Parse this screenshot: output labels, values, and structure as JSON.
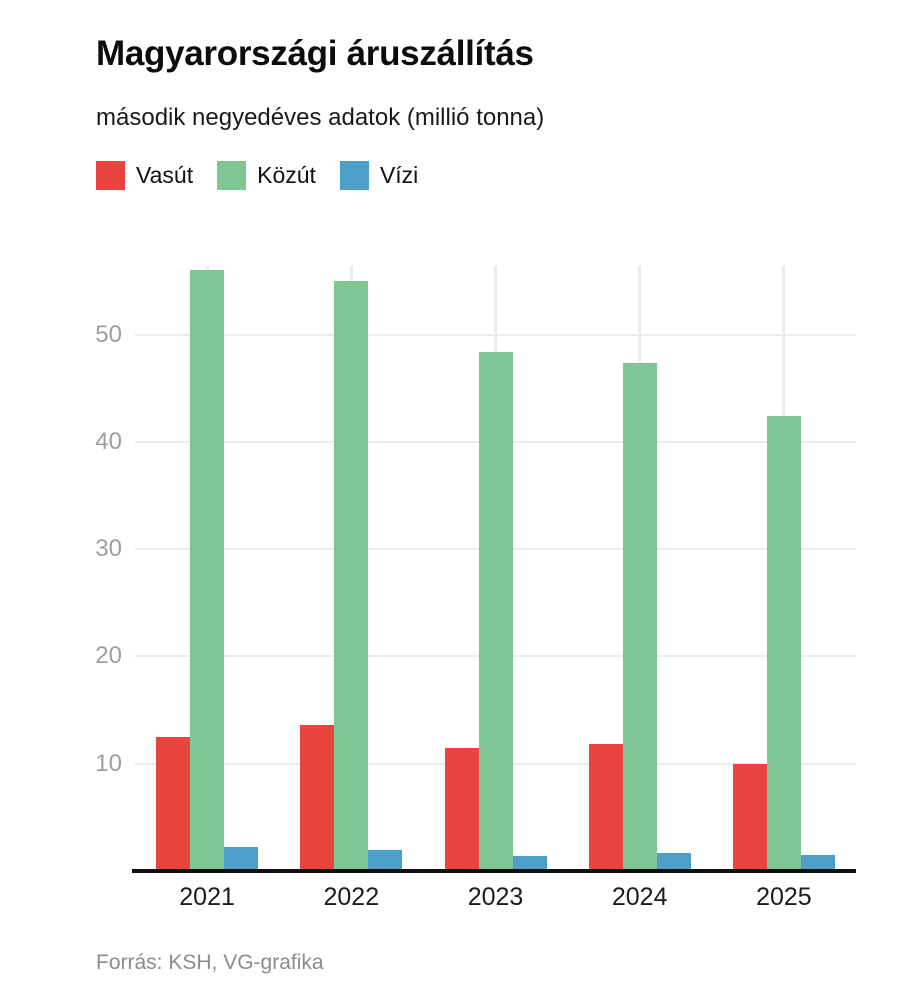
{
  "header": {
    "title": "Magyarországi áruszállítás",
    "subtitle": "második negyedéves adatok (millió tonna)"
  },
  "footer": {
    "source": "Forrás: KSH, VG-grafika"
  },
  "colors": {
    "vasut": "#e9453f",
    "kozut": "#7ec794",
    "vizi": "#4c9fc8",
    "grid": "#ececec",
    "axis": "#0f0f0f",
    "y_label": "#9e9e9e"
  },
  "chart_data": {
    "type": "bar",
    "title": "Magyarországi áruszállítás",
    "subtitle": "második negyedéves adatok (millió tonna)",
    "categories": [
      "2021",
      "2022",
      "2023",
      "2024",
      "2025"
    ],
    "series": [
      {
        "name": "Vasút",
        "color": "#e9453f",
        "values": [
          12.5,
          13.6,
          11.5,
          11.8,
          10.0
        ]
      },
      {
        "name": "Közút",
        "color": "#7ec794",
        "values": [
          56.0,
          55.0,
          48.4,
          47.4,
          42.4
        ]
      },
      {
        "name": "Vízi",
        "color": "#4c9fc8",
        "values": [
          2.2,
          2.0,
          1.4,
          1.7,
          1.5
        ]
      }
    ],
    "xlabel": "",
    "ylabel": "",
    "yticks": [
      10,
      20,
      30,
      40,
      50
    ],
    "ylim": [
      0,
      56.4
    ],
    "grid": true,
    "vertical_gridlines": true,
    "legend_position": "top-left",
    "source": "Forrás: KSH, VG-grafika"
  }
}
